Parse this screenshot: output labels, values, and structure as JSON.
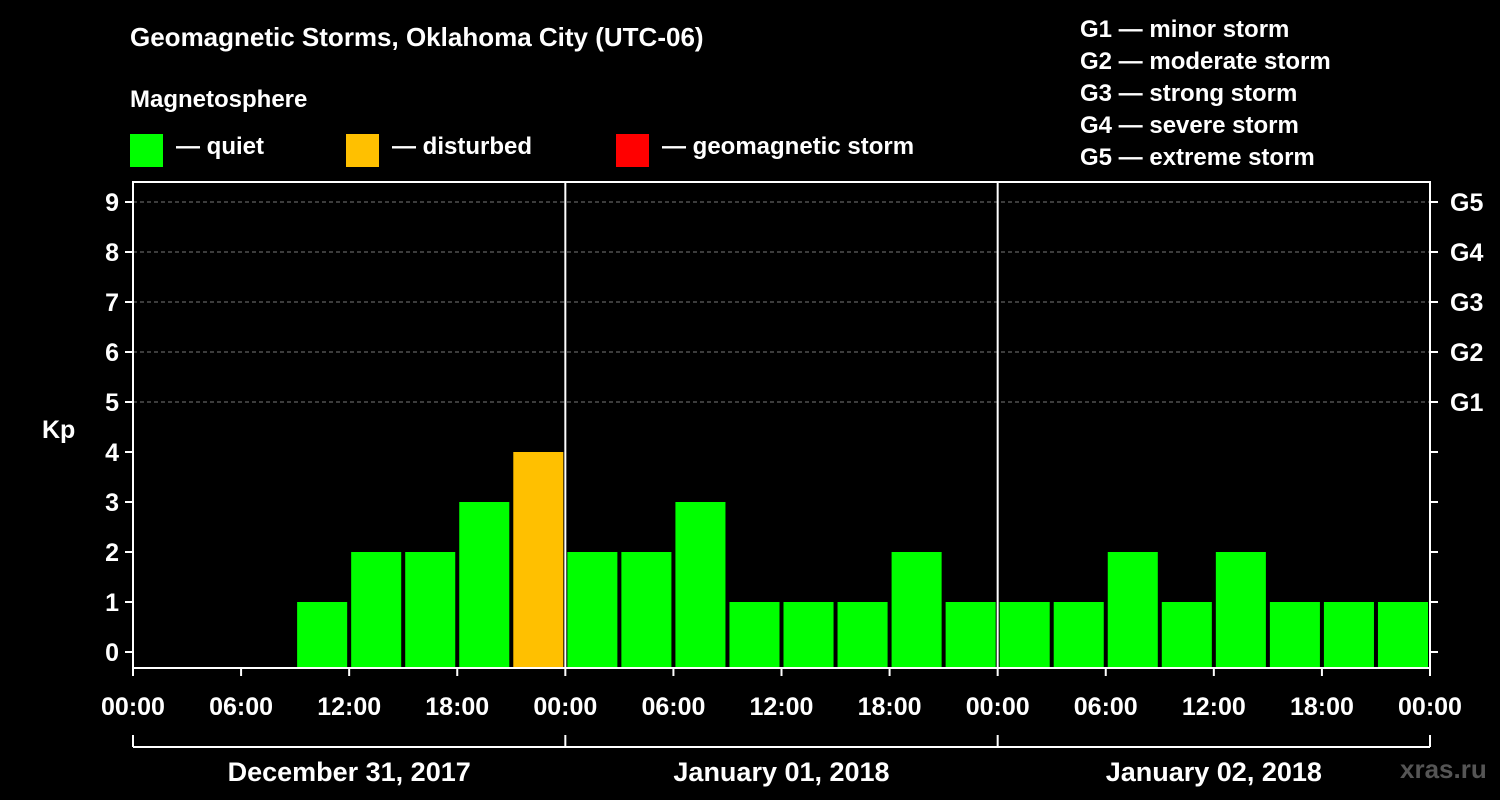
{
  "header": {
    "title": "Geomagnetic Storms, Oklahoma City (UTC-06)",
    "subtitle": "Magnetosphere"
  },
  "legend": {
    "items": [
      {
        "label": "— quiet",
        "color": "#00ff00"
      },
      {
        "label": "— disturbed",
        "color": "#ffc000"
      },
      {
        "label": "— geomagnetic storm",
        "color": "#ff0000"
      }
    ]
  },
  "storm_scale": [
    "G1 — minor storm",
    "G2 — moderate storm",
    "G3 — strong storm",
    "G4 — severe storm",
    "G5 — extreme storm"
  ],
  "watermark": "xras.ru",
  "chart_data": {
    "type": "bar",
    "ylabel": "Kp",
    "ylim": [
      0,
      9
    ],
    "yticks": [
      0,
      1,
      2,
      3,
      4,
      5,
      6,
      7,
      8,
      9
    ],
    "right_axis_labels": [
      {
        "kp": 5,
        "label": "G1"
      },
      {
        "kp": 6,
        "label": "G2"
      },
      {
        "kp": 7,
        "label": "G3"
      },
      {
        "kp": 8,
        "label": "G4"
      },
      {
        "kp": 9,
        "label": "G5"
      }
    ],
    "grid": "dashed horizontal at Kp 5-9",
    "x_tick_labels": [
      "00:00",
      "06:00",
      "12:00",
      "18:00",
      "00:00",
      "06:00",
      "12:00",
      "18:00",
      "00:00",
      "06:00",
      "12:00",
      "18:00",
      "00:00"
    ],
    "days": [
      "December 31, 2017",
      "January 01, 2018",
      "January 02, 2018"
    ],
    "interval_hours": 3,
    "series": [
      {
        "values": [
          null,
          null,
          null,
          1,
          2,
          2,
          3,
          4,
          2,
          2,
          3,
          1,
          1,
          1,
          2,
          1,
          1,
          1,
          2,
          1,
          2,
          1,
          1,
          1
        ],
        "status": [
          "",
          "",
          "",
          "quiet",
          "quiet",
          "quiet",
          "quiet",
          "disturbed",
          "quiet",
          "quiet",
          "quiet",
          "quiet",
          "quiet",
          "quiet",
          "quiet",
          "quiet",
          "quiet",
          "quiet",
          "quiet",
          "quiet",
          "quiet",
          "quiet",
          "quiet",
          "quiet"
        ]
      }
    ],
    "status_colors": {
      "quiet": "#00ff00",
      "disturbed": "#ffc000",
      "storm": "#ff0000"
    }
  }
}
